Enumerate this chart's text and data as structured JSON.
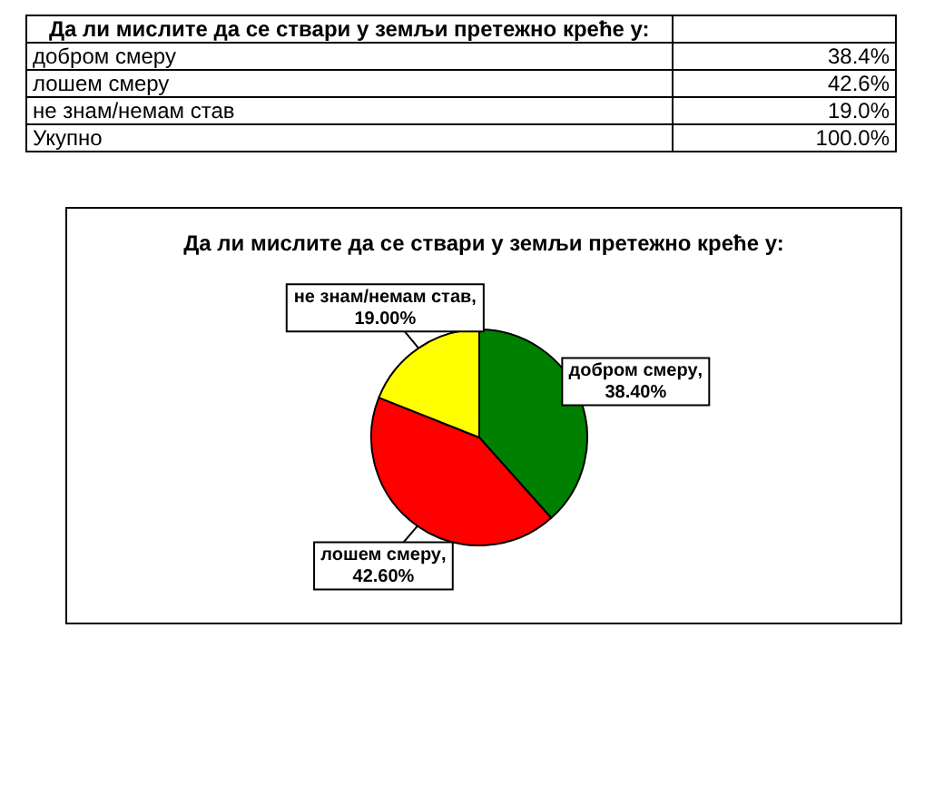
{
  "chart_data": [
    {
      "type": "other",
      "title": "Да ли мислите да се ствари у земљи претежно креће у:",
      "annotations": [
        "добром смеру",
        "38.4%",
        "лошем смеру",
        "42.6%",
        "не знам/немам став",
        "19.0%",
        "Укупно",
        "100.0%"
      ]
    },
    {
      "type": "pie",
      "title": "Да ли мислите да се ствари у земљи претежно креће у:",
      "categories": [
        "добром смеру",
        "лошем смеру",
        "не знам/немам став"
      ],
      "values": [
        38.4,
        42.6,
        19.0
      ],
      "colors": [
        "#008000",
        "#ff0000",
        "#ffff00"
      ],
      "value_labels": [
        ", 38.40%",
        ", 42.60%",
        ", 19.00%"
      ],
      "legend": false
    }
  ]
}
